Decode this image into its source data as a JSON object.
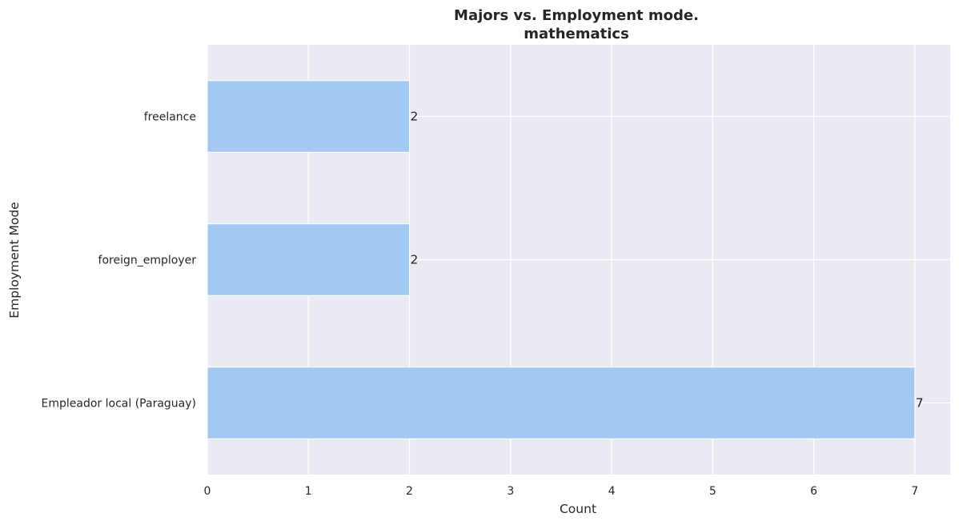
{
  "chart_data": {
    "type": "bar",
    "orientation": "horizontal",
    "title": "Majors vs. Employment mode.",
    "subtitle": "mathematics",
    "xlabel": "Count",
    "ylabel": "Employment Mode",
    "categories": [
      "freelance",
      "foreign_employer",
      "Empleador local (Paraguay)"
    ],
    "values": [
      2,
      2,
      7
    ],
    "value_labels": [
      "2",
      "2",
      "7"
    ],
    "xlim": [
      0,
      7.35
    ],
    "xticks": [
      0,
      1,
      2,
      3,
      4,
      5,
      6,
      7
    ],
    "xtick_labels": [
      "0",
      "1",
      "2",
      "3",
      "4",
      "5",
      "6",
      "7"
    ],
    "grid": true,
    "legend": "none",
    "colors": {
      "bar": "#a1c9f4",
      "plot_background": "#eaeaf2",
      "grid": "#ffffff",
      "text": "#262626"
    }
  }
}
